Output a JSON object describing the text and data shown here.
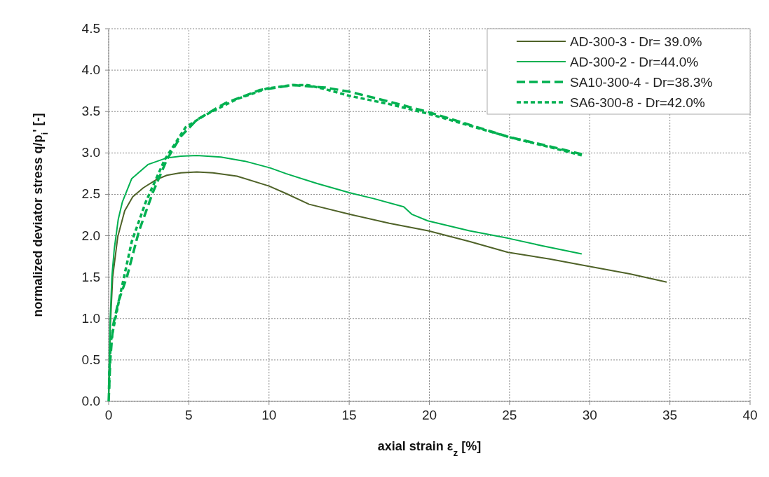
{
  "chart_data": {
    "type": "line",
    "xlabel": "axial strain ε$_{z}$ [%]",
    "ylabel": "normalized deviator stress q/p$_{i}$' [-]",
    "xlim": [
      0,
      40
    ],
    "ylim": [
      0,
      4.5
    ],
    "xticks": [
      0,
      5,
      10,
      15,
      20,
      25,
      30,
      35,
      40
    ],
    "yticks": [
      {
        "value": 0,
        "label": "0.0"
      },
      {
        "value": 0.5,
        "label": "0.5"
      },
      {
        "value": 1,
        "label": "1.0"
      },
      {
        "value": 1.5,
        "label": "1.5"
      },
      {
        "value": 2,
        "label": "2.0"
      },
      {
        "value": 2.5,
        "label": "2.5"
      },
      {
        "value": 3,
        "label": "3.0"
      },
      {
        "value": 3.5,
        "label": "3.5"
      },
      {
        "value": 4,
        "label": "4.0"
      },
      {
        "value": 4.5,
        "label": "4.5"
      }
    ],
    "grid": true,
    "legend": "top right",
    "series": [
      {
        "name": "AD-300-3 - Dr= 39.0%",
        "color": "#4f6228",
        "line_style": "solid",
        "x": [
          0,
          0.1,
          0.25,
          0.57,
          1.0,
          1.5,
          2.17,
          3.0,
          3.63,
          4.5,
          5.5,
          6.5,
          8,
          10,
          11.06,
          12.5,
          15,
          17.5,
          19.93,
          22.5,
          24.9,
          27.5,
          29.95,
          32.5,
          34.8
        ],
        "values": [
          0,
          0.9,
          1.5,
          1.99,
          2.3,
          2.47,
          2.58,
          2.68,
          2.73,
          2.76,
          2.77,
          2.76,
          2.72,
          2.6,
          2.51,
          2.38,
          2.26,
          2.15,
          2.06,
          1.93,
          1.8,
          1.72,
          1.63,
          1.54,
          1.44
        ]
      },
      {
        "name": "AD-300-2 - Dr=44.0%",
        "color": "#00b050",
        "line_style": "solid",
        "x": [
          0,
          0.1,
          0.2,
          0.35,
          0.6,
          0.86,
          1.44,
          2.45,
          3.63,
          4.5,
          5.5,
          7,
          8.5,
          10.06,
          11.06,
          13,
          15,
          16.5,
          18.4,
          18.9,
          19.9,
          22.5,
          24.9,
          27,
          29.5
        ],
        "values": [
          0,
          1.0,
          1.5,
          1.84,
          2.2,
          2.41,
          2.69,
          2.86,
          2.94,
          2.96,
          2.97,
          2.95,
          2.9,
          2.82,
          2.75,
          2.63,
          2.52,
          2.45,
          2.35,
          2.26,
          2.18,
          2.06,
          1.97,
          1.88,
          1.78
        ]
      },
      {
        "name": "SA10-300-4 - Dr=38.3%",
        "color": "#00b050",
        "line_style": "dashed",
        "x": [
          0,
          0.1,
          0.27,
          0.6,
          1.15,
          1.88,
          2.75,
          3.63,
          4.5,
          5.5,
          7.26,
          9.44,
          11.5,
          12.07,
          13.5,
          15,
          17.5,
          20,
          22.5,
          25,
          27.5,
          29.6
        ],
        "values": [
          0,
          0.5,
          0.91,
          1.2,
          1.51,
          2.05,
          2.52,
          2.92,
          3.2,
          3.4,
          3.6,
          3.76,
          3.82,
          3.81,
          3.79,
          3.74,
          3.62,
          3.49,
          3.34,
          3.19,
          3.08,
          2.98
        ]
      },
      {
        "name": "SA6-300-8 - Dr=42.0%",
        "color": "#00b050",
        "line_style": "dotted",
        "x": [
          0.02,
          0.05,
          0.13,
          0.71,
          1.44,
          2.32,
          3.5,
          4.8,
          5.95,
          8,
          9.9,
          11.5,
          12.4,
          13.5,
          15,
          17.5,
          20,
          22.5,
          25,
          27.5,
          29.5
        ],
        "values": [
          0.15,
          0.4,
          0.72,
          1.28,
          1.93,
          2.41,
          2.92,
          3.31,
          3.45,
          3.65,
          3.78,
          3.82,
          3.82,
          3.77,
          3.69,
          3.59,
          3.47,
          3.33,
          3.19,
          3.07,
          2.97
        ]
      }
    ]
  }
}
